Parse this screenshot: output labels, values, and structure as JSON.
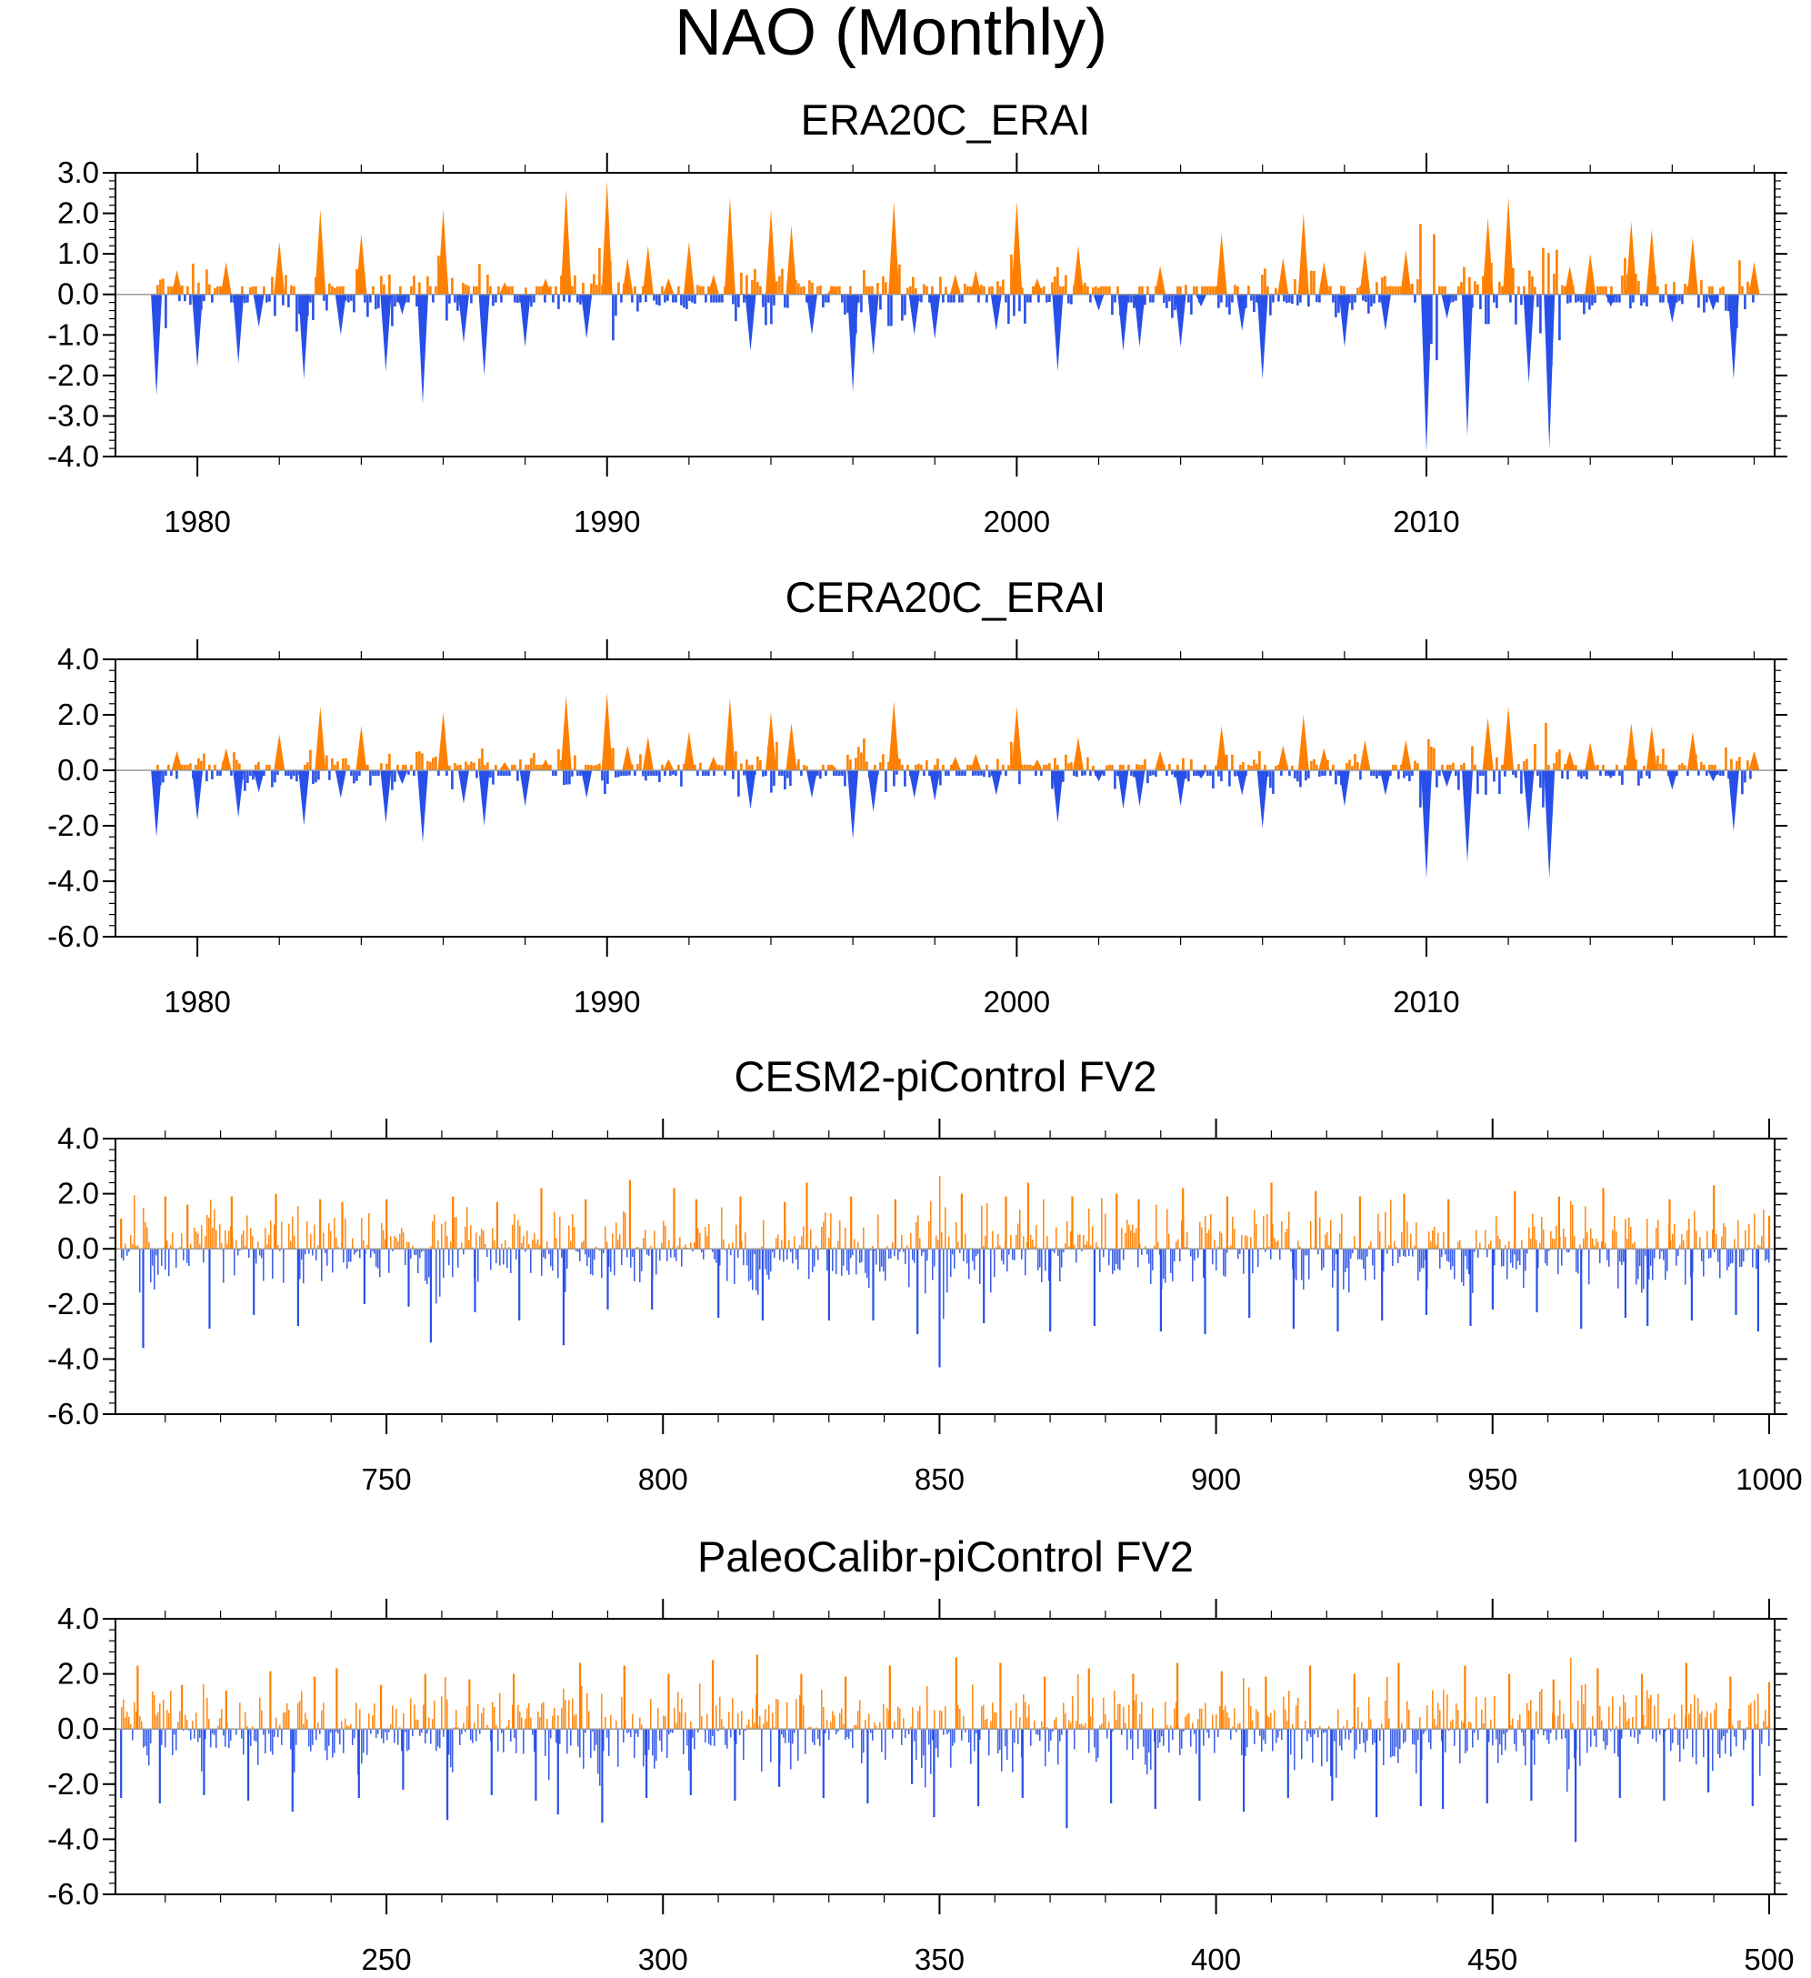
{
  "figure_title": "NAO (Monthly)",
  "colors": {
    "positive": "#ff8000",
    "negative": "#2850e8",
    "axis": "#000000"
  },
  "chart_data": [
    {
      "type": "area",
      "title": "ERA20C_ERAI",
      "xlabel": "",
      "ylabel": "",
      "xlim": [
        1978,
        2018.5
      ],
      "ylim": [
        -4.0,
        3.0
      ],
      "yticks": [
        -4.0,
        -3.0,
        -2.0,
        -1.0,
        0.0,
        1.0,
        2.0,
        3.0
      ],
      "ytick_labels": [
        "-4.0",
        "-3.0",
        "-2.0",
        "-1.0",
        "0.0",
        "1.0",
        "2.0",
        "3.0"
      ],
      "xticks": [
        1980,
        1990,
        2000,
        2010
      ],
      "xtick_labels": [
        "1980",
        "1990",
        "2000",
        "2010"
      ],
      "x": [
        1979.0,
        1979.5,
        1980.0,
        1980.7,
        1981.0,
        1981.5,
        1982.0,
        1982.6,
        1983.0,
        1983.5,
        1984.0,
        1984.6,
        1985.0,
        1985.5,
        1986.0,
        1986.5,
        1987.0,
        1987.5,
        1988.0,
        1988.5,
        1989.0,
        1989.5,
        1990.0,
        1990.5,
        1991.0,
        1991.5,
        1992.0,
        1992.6,
        1993.0,
        1993.5,
        1994.0,
        1994.5,
        1995.0,
        1995.5,
        1996.0,
        1996.5,
        1997.0,
        1997.5,
        1998.0,
        1998.5,
        1999.0,
        1999.5,
        2000.0,
        2000.5,
        2001.0,
        2001.5,
        2002.0,
        2002.6,
        2003.0,
        2003.5,
        2004.0,
        2004.5,
        2005.0,
        2005.5,
        2006.0,
        2006.5,
        2007.0,
        2007.5,
        2008.0,
        2008.5,
        2009.0,
        2009.5,
        2010.0,
        2010.5,
        2011.0,
        2011.5,
        2012.0,
        2012.5,
        2013.0,
        2013.5,
        2014.0,
        2014.5,
        2015.0,
        2015.5,
        2016.0,
        2016.5,
        2017.0,
        2017.5,
        2018.0
      ],
      "values": [
        -2.5,
        0.6,
        -1.8,
        0.8,
        -1.7,
        -0.8,
        1.3,
        -2.1,
        2.1,
        -1.0,
        1.5,
        -1.9,
        -0.5,
        -2.7,
        2.1,
        -1.2,
        -2.0,
        0.3,
        -1.3,
        0.4,
        2.6,
        -1.1,
        2.8,
        0.9,
        1.2,
        0.4,
        1.3,
        0.5,
        2.4,
        -1.4,
        2.1,
        1.7,
        -1.0,
        0.2,
        -2.4,
        -1.5,
        2.3,
        -1.0,
        -1.1,
        0.5,
        0.6,
        -0.9,
        2.3,
        0.4,
        -1.9,
        1.2,
        -0.4,
        -1.4,
        -1.3,
        0.7,
        -1.3,
        -0.3,
        1.5,
        -0.9,
        -2.1,
        0.9,
        2.0,
        0.8,
        -1.3,
        1.1,
        -0.9,
        1.1,
        -3.9,
        -0.6,
        -3.5,
        1.9,
        2.4,
        -2.2,
        -3.8,
        0.7,
        1.0,
        -0.3,
        1.8,
        1.6,
        -0.7,
        1.4,
        -0.4,
        -2.1,
        0.8
      ]
    },
    {
      "type": "area",
      "title": "CERA20C_ERAI",
      "xlabel": "",
      "ylabel": "",
      "xlim": [
        1978,
        2018.5
      ],
      "ylim": [
        -6.0,
        4.0
      ],
      "yticks": [
        -6.0,
        -4.0,
        -2.0,
        0.0,
        2.0,
        4.0
      ],
      "ytick_labels": [
        "-6.0",
        "-4.0",
        "-2.0",
        "0.0",
        "2.0",
        "4.0"
      ],
      "xticks": [
        1980,
        1990,
        2000,
        2010
      ],
      "xtick_labels": [
        "1980",
        "1990",
        "2000",
        "2010"
      ],
      "x": [
        1979.0,
        1979.5,
        1980.0,
        1980.7,
        1981.0,
        1981.5,
        1982.0,
        1982.6,
        1983.0,
        1983.5,
        1984.0,
        1984.6,
        1985.0,
        1985.5,
        1986.0,
        1986.5,
        1987.0,
        1987.5,
        1988.0,
        1988.5,
        1989.0,
        1989.5,
        1990.0,
        1990.5,
        1991.0,
        1991.5,
        1992.0,
        1992.6,
        1993.0,
        1993.5,
        1994.0,
        1994.5,
        1995.0,
        1995.5,
        1996.0,
        1996.5,
        1997.0,
        1997.5,
        1998.0,
        1998.5,
        1999.0,
        1999.5,
        2000.0,
        2000.5,
        2001.0,
        2001.5,
        2002.0,
        2002.6,
        2003.0,
        2003.5,
        2004.0,
        2004.5,
        2005.0,
        2005.5,
        2006.0,
        2006.5,
        2007.0,
        2007.5,
        2008.0,
        2008.5,
        2009.0,
        2009.5,
        2010.0,
        2010.5,
        2011.0,
        2011.5,
        2012.0,
        2012.5,
        2013.0,
        2013.5,
        2014.0,
        2014.5,
        2015.0,
        2015.5,
        2016.0,
        2016.5,
        2017.0,
        2017.5,
        2018.0
      ],
      "values": [
        -2.4,
        0.7,
        -1.8,
        0.8,
        -1.7,
        -0.8,
        1.3,
        -2.0,
        2.3,
        -1.0,
        1.6,
        -1.9,
        -0.5,
        -2.6,
        2.1,
        -1.2,
        -2.0,
        0.3,
        -1.3,
        0.4,
        2.7,
        -1.0,
        2.8,
        0.9,
        1.2,
        0.4,
        1.4,
        0.5,
        2.6,
        -1.4,
        2.1,
        1.7,
        -1.0,
        0.2,
        -2.5,
        -1.5,
        2.5,
        -1.0,
        -1.1,
        0.5,
        0.6,
        -0.9,
        2.3,
        0.4,
        -1.9,
        1.2,
        -0.4,
        -1.4,
        -1.3,
        0.7,
        -1.3,
        -0.3,
        1.6,
        -0.9,
        -2.1,
        0.9,
        2.0,
        0.8,
        -1.3,
        1.1,
        -0.9,
        1.1,
        -3.9,
        -0.6,
        -3.3,
        1.9,
        2.3,
        -2.2,
        -3.9,
        0.7,
        1.0,
        -0.3,
        1.7,
        1.6,
        -0.7,
        1.4,
        -0.4,
        -2.2,
        0.7
      ]
    },
    {
      "type": "bar",
      "title": "CESM2-piControl FV2",
      "xlabel": "",
      "ylabel": "",
      "xlim": [
        701,
        1001
      ],
      "ylim": [
        -6.0,
        4.0
      ],
      "yticks": [
        -6.0,
        -4.0,
        -2.0,
        0.0,
        2.0,
        4.0
      ],
      "ytick_labels": [
        "-6.0",
        "-4.0",
        "-2.0",
        "0.0",
        "2.0",
        "4.0"
      ],
      "xticks": [
        750,
        800,
        850,
        900,
        950,
        1000
      ],
      "xtick_labels": [
        "750",
        "800",
        "850",
        "900",
        "950",
        "1000"
      ],
      "x": [
        702,
        706,
        710,
        714,
        718,
        722,
        726,
        730,
        734,
        738,
        742,
        746,
        750,
        754,
        758,
        762,
        766,
        770,
        774,
        778,
        782,
        786,
        790,
        794,
        798,
        802,
        806,
        810,
        814,
        818,
        822,
        826,
        830,
        834,
        838,
        842,
        846,
        850,
        854,
        858,
        862,
        866,
        870,
        874,
        878,
        882,
        886,
        890,
        894,
        898,
        902,
        906,
        910,
        914,
        918,
        922,
        926,
        930,
        934,
        938,
        942,
        946,
        950,
        954,
        958,
        962,
        966,
        970,
        974,
        978,
        982,
        986,
        990,
        994,
        998,
        1000
      ],
      "values": [
        1.1,
        -3.6,
        1.9,
        1.6,
        -2.9,
        1.9,
        -2.4,
        2.0,
        -2.8,
        1.8,
        1.7,
        -2.0,
        1.8,
        -2.1,
        -3.4,
        1.9,
        -2.3,
        1.7,
        -2.6,
        2.2,
        -3.5,
        1.8,
        -2.2,
        2.5,
        -2.2,
        2.2,
        1.8,
        -2.5,
        1.9,
        -2.6,
        1.7,
        2.4,
        -2.6,
        1.9,
        -2.6,
        1.8,
        -3.1,
        -4.3,
        2.0,
        -2.7,
        1.9,
        2.4,
        -3.0,
        1.9,
        -2.8,
        2.0,
        1.8,
        -3.0,
        2.2,
        -3.1,
        1.9,
        -2.5,
        2.4,
        -2.9,
        2.1,
        -3.0,
        1.9,
        -2.6,
        2.0,
        -2.4,
        1.8,
        -2.8,
        -2.2,
        2.1,
        -2.3,
        1.9,
        -2.9,
        2.2,
        -2.5,
        -2.8,
        1.8,
        -2.6,
        2.3,
        -2.4,
        -3.0,
        1.2
      ]
    },
    {
      "type": "bar",
      "title": "PaleoCalibr-piControl FV2",
      "xlabel": "",
      "ylabel": "",
      "xlim": [
        201,
        501
      ],
      "ylim": [
        -6.0,
        4.0
      ],
      "yticks": [
        -6.0,
        -4.0,
        -2.0,
        0.0,
        2.0,
        4.0
      ],
      "ytick_labels": [
        "-6.0",
        "-4.0",
        "-2.0",
        "0.0",
        "2.0",
        "4.0"
      ],
      "xticks": [
        250,
        300,
        350,
        400,
        450,
        500
      ],
      "xtick_labels": [
        "250",
        "300",
        "350",
        "400",
        "450",
        "500"
      ],
      "x": [
        202,
        205,
        209,
        213,
        217,
        221,
        225,
        229,
        233,
        237,
        241,
        245,
        249,
        253,
        257,
        261,
        265,
        269,
        273,
        277,
        281,
        285,
        289,
        293,
        297,
        301,
        305,
        309,
        313,
        317,
        321,
        325,
        329,
        333,
        337,
        341,
        345,
        349,
        353,
        357,
        361,
        365,
        369,
        373,
        377,
        381,
        385,
        389,
        393,
        397,
        401,
        405,
        409,
        413,
        417,
        421,
        425,
        429,
        433,
        437,
        441,
        445,
        449,
        453,
        457,
        461,
        465,
        469,
        473,
        477,
        481,
        485,
        489,
        493,
        497,
        500
      ],
      "values": [
        -2.5,
        2.3,
        -2.7,
        1.6,
        -2.4,
        1.4,
        -2.6,
        2.1,
        -3.0,
        1.9,
        2.2,
        -2.5,
        1.6,
        -2.2,
        2.0,
        -3.3,
        1.8,
        -2.4,
        2.0,
        -2.6,
        -3.1,
        2.4,
        -3.4,
        2.3,
        -2.5,
        2.0,
        -2.4,
        2.5,
        -2.6,
        2.7,
        -2.1,
        2.0,
        -2.5,
        1.9,
        -2.7,
        2.3,
        -2.0,
        -3.2,
        2.6,
        -2.8,
        2.4,
        -2.5,
        1.9,
        -3.6,
        2.2,
        -2.7,
        2.0,
        -2.9,
        2.4,
        -2.6,
        2.1,
        -3.0,
        1.9,
        -2.5,
        2.3,
        -2.6,
        2.0,
        -3.2,
        2.4,
        -2.8,
        -2.9,
        2.3,
        -2.7,
        2.0,
        -2.6,
        1.8,
        -4.1,
        2.2,
        -2.5,
        2.0,
        -2.6,
        2.4,
        -2.3,
        1.9,
        -2.8,
        1.7
      ]
    }
  ]
}
